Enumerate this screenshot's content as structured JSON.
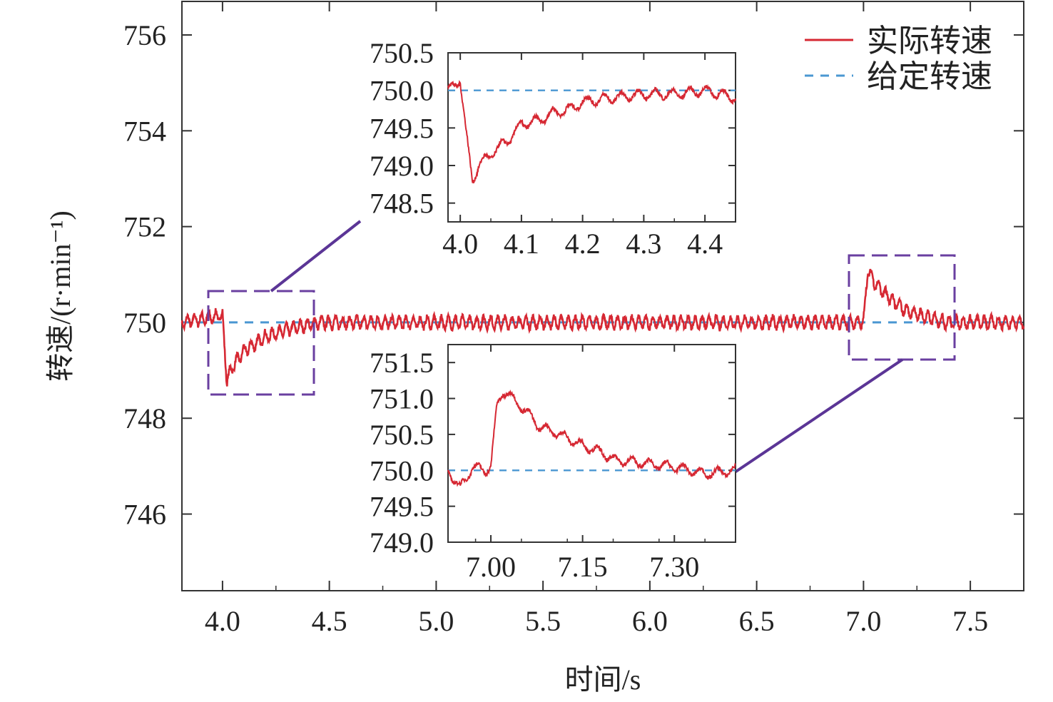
{
  "chart_data": [
    {
      "type": "line",
      "panel": "main",
      "xlabel": "时间/s",
      "ylabel": "转速/(r·min⁻¹)",
      "xlim": [
        3.81,
        7.75
      ],
      "ylim": [
        744.4,
        756.7
      ],
      "xticks": [
        "4.0",
        "4.5",
        "5.0",
        "5.5",
        "6.0",
        "6.5",
        "7.0",
        "7.5"
      ],
      "yticks": [
        "746",
        "748",
        "750",
        "752",
        "754",
        "756"
      ],
      "legend": "top-right",
      "grid": false,
      "series": [
        {
          "name": "实际转速",
          "color": "#d62833",
          "style": "solid",
          "x": [
            3.81,
            4.0,
            4.003,
            4.02,
            4.05,
            4.1,
            4.15,
            4.2,
            4.3,
            4.45,
            6.99,
            7.0,
            7.02,
            7.05,
            7.1,
            7.15,
            7.2,
            7.3,
            7.4,
            7.75
          ],
          "y": [
            750.0,
            750.15,
            749.9,
            748.8,
            749.1,
            749.4,
            749.55,
            749.7,
            749.85,
            750.0,
            750.0,
            750.0,
            751.1,
            750.85,
            750.6,
            750.4,
            750.25,
            750.1,
            750.0,
            750.0
          ]
        },
        {
          "name": "给定转速",
          "color": "#4a97d2",
          "style": "dashed",
          "x": [
            3.81,
            7.75
          ],
          "y": [
            750.0,
            750.0
          ]
        }
      ]
    },
    {
      "type": "line",
      "panel": "inset-top",
      "xlim": [
        3.98,
        4.45
      ],
      "ylim": [
        748.25,
        750.5
      ],
      "xticks": [
        "4.0",
        "4.1",
        "4.2",
        "4.3",
        "4.4"
      ],
      "yticks": [
        "750.5",
        "750.0",
        "749.5",
        "749.0",
        "748.5"
      ],
      "series": [
        {
          "name": "实际转速",
          "x": [
            3.98,
            4.0,
            4.003,
            4.01,
            4.02,
            4.03,
            4.05,
            4.08,
            4.1,
            4.13,
            4.15,
            4.18,
            4.2,
            4.25,
            4.3,
            4.35,
            4.4,
            4.45
          ],
          "y": [
            750.0,
            750.15,
            749.9,
            749.4,
            748.8,
            749.0,
            749.15,
            749.35,
            749.55,
            749.6,
            749.7,
            749.75,
            749.85,
            749.9,
            749.95,
            749.95,
            750.0,
            749.9
          ]
        },
        {
          "name": "给定转速",
          "x": [
            3.98,
            4.45
          ],
          "y": [
            750.0,
            750.0
          ]
        }
      ]
    },
    {
      "type": "line",
      "panel": "inset-bottom",
      "xlim": [
        6.93,
        7.4
      ],
      "ylim": [
        749.0,
        751.75
      ],
      "xticks": [
        "7.00",
        "7.15",
        "7.30"
      ],
      "yticks": [
        "751.5",
        "751.0",
        "750.5",
        "750.0",
        "749.5",
        "749.0"
      ],
      "series": [
        {
          "name": "实际转速",
          "x": [
            6.93,
            6.95,
            6.97,
            6.99,
            7.0,
            7.01,
            7.02,
            7.03,
            7.06,
            7.08,
            7.1,
            7.15,
            7.18,
            7.2,
            7.25,
            7.3,
            7.35,
            7.4
          ],
          "y": [
            750.0,
            749.75,
            750.05,
            750.0,
            750.05,
            750.9,
            751.1,
            751.05,
            750.8,
            750.6,
            750.55,
            750.35,
            750.25,
            750.15,
            750.1,
            750.05,
            749.95,
            750.0
          ]
        },
        {
          "name": "给定转速",
          "x": [
            6.93,
            7.4
          ],
          "y": [
            750.0,
            750.0
          ]
        }
      ]
    }
  ]
}
